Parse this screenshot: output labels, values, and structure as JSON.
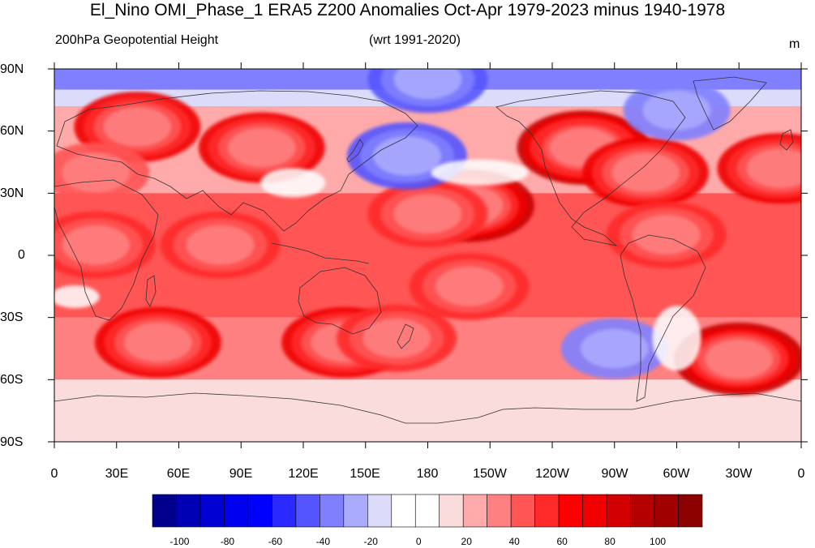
{
  "title": "El_Nino OMI_Phase_1 ERA5 Z200 Anomalies Oct-Apr 1979-2023 minus 1940-1978",
  "subtitle_left": "200hPa Geopotential Height",
  "subtitle_center": "(wrt 1991-2020)",
  "units": "m",
  "y_ticks": [
    "90N",
    "60N",
    "30N",
    "0",
    "30S",
    "60S",
    "90S"
  ],
  "x_ticks": [
    "0",
    "30E",
    "60E",
    "90E",
    "120E",
    "150E",
    "180",
    "150W",
    "120W",
    "90W",
    "60W",
    "30W",
    "0"
  ],
  "colorbar": {
    "colors": [
      "#00008c",
      "#0000b4",
      "#0000d2",
      "#0000f0",
      "#0000ff",
      "#2a2aff",
      "#5555ff",
      "#8080ff",
      "#aaaaff",
      "#dcdcfa",
      "#ffffff",
      "#ffffff",
      "#fadcdc",
      "#ffaaaa",
      "#ff8080",
      "#ff5555",
      "#ff2a2a",
      "#ff0000",
      "#f00000",
      "#d20000",
      "#b40000",
      "#a00000",
      "#8c0000"
    ],
    "labels": [
      "-100",
      "-80",
      "-60",
      "-40",
      "-20",
      "0",
      "20",
      "40",
      "60",
      "80",
      "100"
    ]
  },
  "map_data": {
    "field": "Z200 anomaly",
    "blobs": [
      {
        "lon": 100,
        "lat": 52,
        "value": 60
      },
      {
        "lon": 40,
        "lat": 62,
        "value": 55
      },
      {
        "lon": 20,
        "lat": 40,
        "value": 30
      },
      {
        "lon": 200,
        "lat": 24,
        "value": 75
      },
      {
        "lon": 180,
        "lat": 20,
        "value": 45
      },
      {
        "lon": 255,
        "lat": 52,
        "value": 80
      },
      {
        "lon": 285,
        "lat": 40,
        "value": 60
      },
      {
        "lon": 350,
        "lat": 42,
        "value": 60
      },
      {
        "lon": 50,
        "lat": -42,
        "value": 60
      },
      {
        "lon": 140,
        "lat": -42,
        "value": 55
      },
      {
        "lon": 330,
        "lat": -50,
        "value": 75
      },
      {
        "lon": 165,
        "lat": -40,
        "value": 45
      },
      {
        "lon": 200,
        "lat": -15,
        "value": 45
      },
      {
        "lon": 20,
        "lat": 5,
        "value": 40
      },
      {
        "lon": 80,
        "lat": 5,
        "value": 40
      },
      {
        "lon": 295,
        "lat": 10,
        "value": 40
      },
      {
        "lon": 180,
        "lat": 85,
        "value": -45
      },
      {
        "lon": 170,
        "lat": 48,
        "value": -45
      },
      {
        "lon": 270,
        "lat": -45,
        "value": -25
      },
      {
        "lon": 300,
        "lat": 70,
        "value": -30
      }
    ]
  }
}
